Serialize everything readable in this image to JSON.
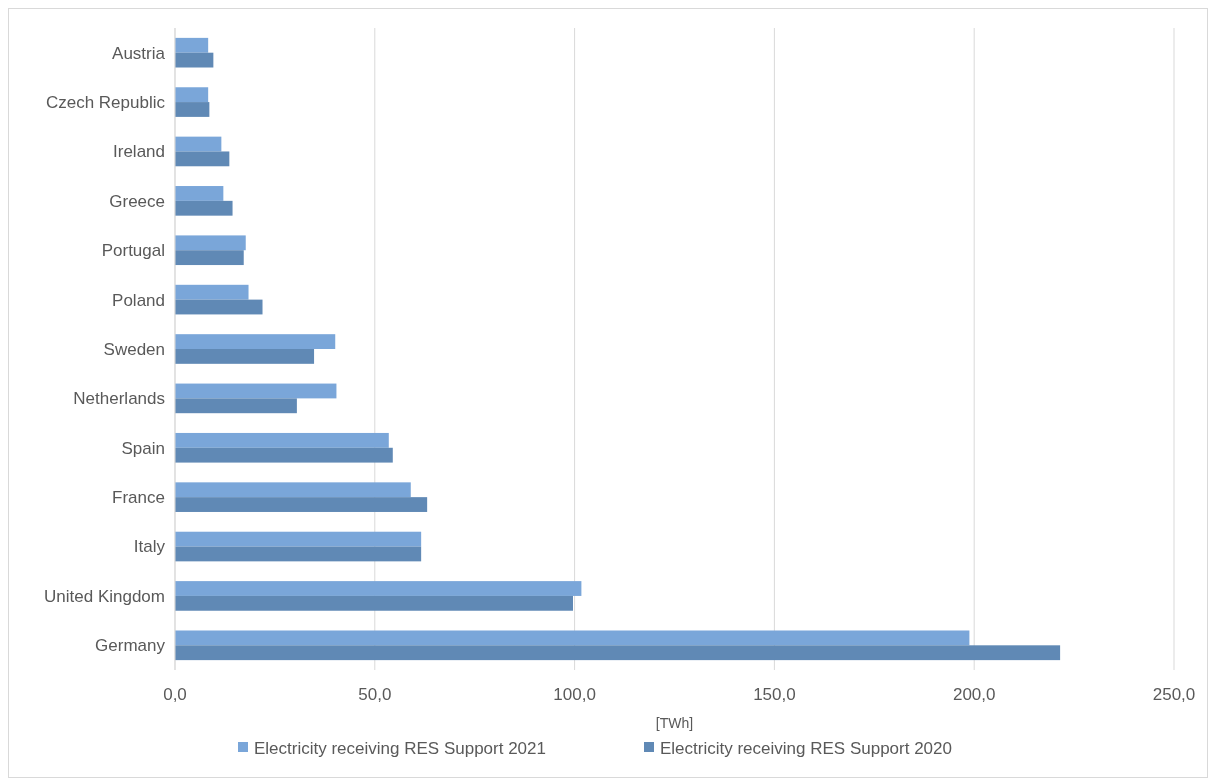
{
  "chart_data": {
    "type": "bar",
    "orientation": "horizontal",
    "xlabel": "[TWh]",
    "categories": [
      "Austria",
      "Czech Republic",
      "Ireland",
      "Greece",
      "Portugal",
      "Poland",
      "Sweden",
      "Netherlands",
      "Spain",
      "France",
      "Italy",
      "United Kingdom",
      "Germany"
    ],
    "series": [
      {
        "name": "Electricity receiving RES Support 2021",
        "color": "#7aa6d9",
        "values": [
          8.3,
          8.3,
          11.6,
          12.1,
          17.7,
          18.4,
          40.1,
          40.4,
          53.5,
          59.0,
          61.6,
          101.7,
          198.8
        ]
      },
      {
        "name": "Electricity receiving RES Support 2020",
        "color": "#6089b5",
        "values": [
          9.6,
          8.6,
          13.6,
          14.4,
          17.2,
          21.9,
          34.8,
          30.5,
          54.5,
          63.1,
          61.6,
          99.6,
          221.5
        ]
      }
    ],
    "xlim": [
      0,
      250
    ],
    "xticks": [
      {
        "value": 0,
        "label": "0,0"
      },
      {
        "value": 50,
        "label": "50,0"
      },
      {
        "value": 100,
        "label": "100,0"
      },
      {
        "value": 150,
        "label": "150,0"
      },
      {
        "value": 200,
        "label": "200,0"
      },
      {
        "value": 250,
        "label": "250,0"
      }
    ],
    "grid": "x",
    "legend": "bottom"
  }
}
